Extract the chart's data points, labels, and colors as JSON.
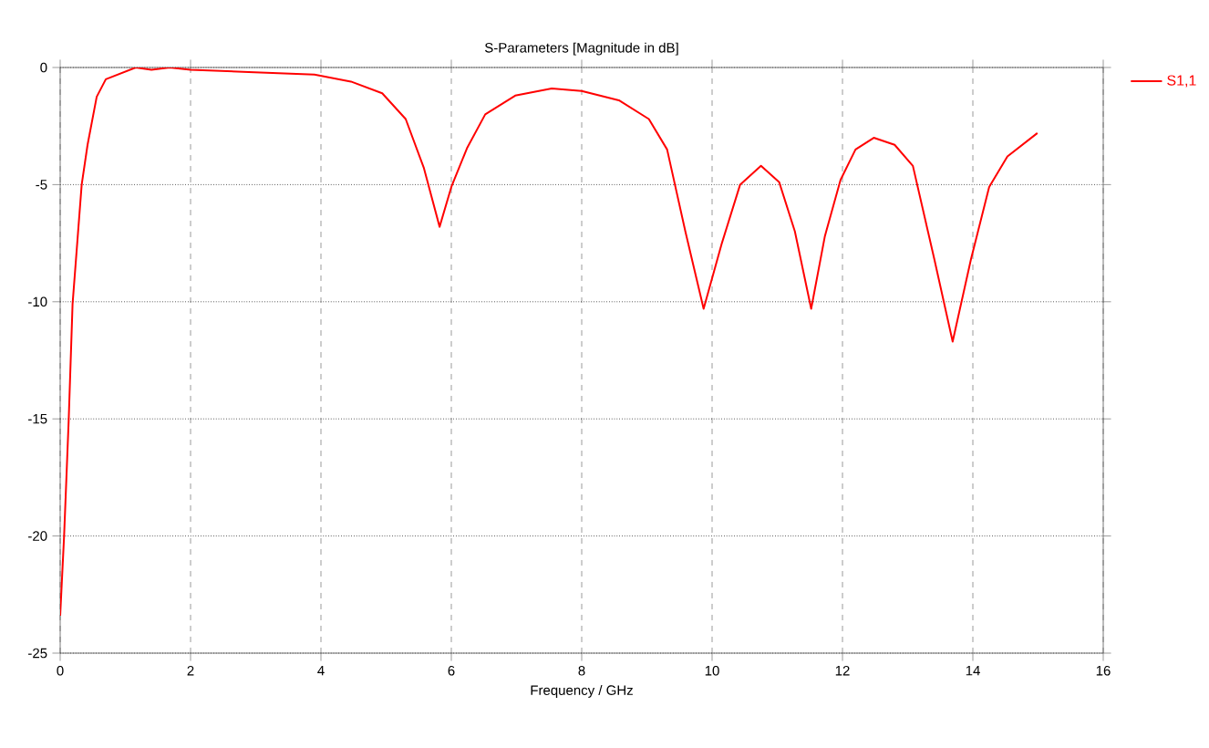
{
  "chart_data": {
    "type": "line",
    "title": "S-Parameters [Magnitude in dB]",
    "xlabel": "Frequency / GHz",
    "x": [
      0,
      0.06,
      0.13,
      0.19,
      0.33,
      0.42,
      0.56,
      0.7,
      0.93,
      1.16,
      1.4,
      1.68,
      2.0,
      2.98,
      3.9,
      4.46,
      4.94,
      5.3,
      5.58,
      5.82,
      6.0,
      6.24,
      6.52,
      6.98,
      7.54,
      8.0,
      8.57,
      9.03,
      9.31,
      9.59,
      9.87,
      10.15,
      10.43,
      10.75,
      11.03,
      11.27,
      11.52,
      11.73,
      11.97,
      12.2,
      12.48,
      12.8,
      13.08,
      13.41,
      13.69,
      13.97,
      14.25,
      14.53,
      14.99
    ],
    "series": [
      {
        "name": "S1,1",
        "color": "#ff0000",
        "values": [
          -23.4,
          -20,
          -15.1,
          -10.1,
          -5,
          -3.3,
          -1.25,
          -0.5,
          -0.25,
          0,
          -0.1,
          0,
          -0.1,
          -0.2,
          -0.3,
          -0.6,
          -1.1,
          -2.2,
          -4.3,
          -6.8,
          -5.1,
          -3.45,
          -2.0,
          -1.2,
          -0.9,
          -1.0,
          -1.4,
          -2.2,
          -3.5,
          -7.0,
          -10.3,
          -7.5,
          -5.0,
          -4.2,
          -4.9,
          -7.0,
          -10.3,
          -7.2,
          -4.8,
          -3.5,
          -3.0,
          -3.3,
          -4.2,
          -8.2,
          -11.7,
          -8.2,
          -5.1,
          -3.8,
          -2.8
        ]
      }
    ],
    "xlim": [
      0,
      16
    ],
    "ylim": [
      -25,
      0
    ],
    "xticks": [
      0,
      2,
      4,
      6,
      8,
      10,
      12,
      14,
      16
    ],
    "yticks": [
      -25,
      -20,
      -15,
      -10,
      -5,
      0
    ],
    "grid": true,
    "legend": "right",
    "line_style": "solid",
    "marker": "none"
  }
}
